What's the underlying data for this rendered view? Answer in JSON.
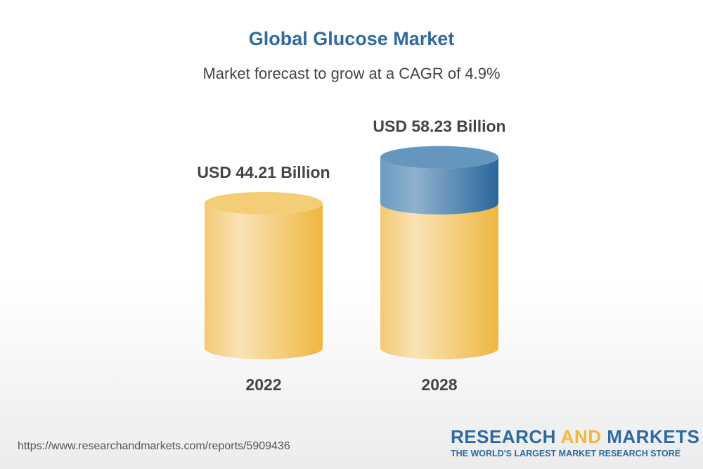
{
  "title": "Global Glucose Market",
  "subtitle": "Market forecast to grow at a CAGR of 4.9%",
  "chart_data": {
    "type": "bar",
    "style": "3d-cylinder",
    "categories": [
      "2022",
      "2028"
    ],
    "values": [
      44.21,
      58.23
    ],
    "data_labels": [
      "USD 44.21 Billion",
      "USD 58.23 Billion"
    ],
    "colors": {
      "base": "#f2c162",
      "growth": "#2d6aa3"
    }
  },
  "footer": {
    "url": "https://www.researchandmarkets.com/reports/5909436",
    "logo_part1": "RESEARCH ",
    "logo_part2": "AND",
    "logo_part3": " MARKETS",
    "tagline": "THE WORLD'S LARGEST MARKET RESEARCH STORE"
  }
}
